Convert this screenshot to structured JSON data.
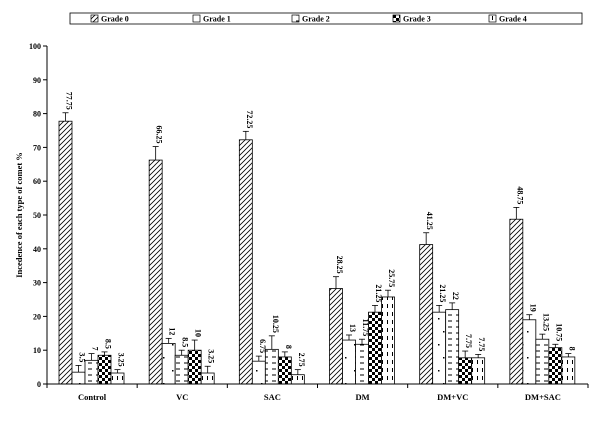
{
  "chart_data": {
    "type": "bar",
    "ylabel": "Incedence of each type of comet %",
    "xlabel": "",
    "ylim": [
      0,
      100
    ],
    "yticks": [
      0,
      10,
      20,
      30,
      40,
      50,
      60,
      70,
      80,
      90,
      100
    ],
    "grid": false,
    "legend_position": "top",
    "categories": [
      "Control",
      "VC",
      "SAC",
      "DM",
      "DM+VC",
      "DM+SAC"
    ],
    "series": [
      {
        "name": "Grade 0",
        "pattern": "diagonal",
        "values": [
          77.75,
          66.25,
          72.25,
          28.25,
          41.25,
          48.75
        ],
        "errors": [
          2.5,
          4.0,
          2.5,
          3.5,
          3.5,
          3.5
        ],
        "labels": [
          "77.75",
          "66.25",
          "72.25",
          "28.25",
          "41.25",
          "48.75"
        ]
      },
      {
        "name": "Grade 1",
        "pattern": "sparse-dots",
        "values": [
          3.5,
          12,
          6.75,
          13,
          21.25,
          19
        ],
        "errors": [
          2.0,
          1.5,
          1.5,
          1.5,
          2.0,
          1.5
        ],
        "labels": [
          "3.5",
          "12",
          "6.75",
          "13",
          "21.25",
          "19"
        ]
      },
      {
        "name": "Grade 2",
        "pattern": "horizontal-dashes",
        "values": [
          7,
          8.5,
          10.25,
          11.75,
          22,
          13.25
        ],
        "errors": [
          2.0,
          1.5,
          4.0,
          1.5,
          2.0,
          1.5
        ],
        "labels": [
          "7",
          "8.5",
          "10.25",
          "11.75",
          "22",
          "13.25"
        ]
      },
      {
        "name": "Grade 3",
        "pattern": "checker",
        "values": [
          8.5,
          10,
          8,
          21.25,
          7.75,
          10.75
        ],
        "errors": [
          1.0,
          3.0,
          1.5,
          2.0,
          2.0,
          1.0
        ],
        "labels": [
          "8.5",
          "10",
          "8",
          "21.25",
          "7.75",
          "10.75"
        ]
      },
      {
        "name": "Grade 4",
        "pattern": "vertical-dashes",
        "values": [
          3.25,
          3.25,
          2.75,
          25.75,
          7.75,
          8
        ],
        "errors": [
          1.0,
          2.0,
          1.5,
          2.0,
          1.0,
          1.0
        ],
        "labels": [
          "3.25",
          "3.25",
          "2.75",
          "25.75",
          "7.75",
          "8"
        ]
      }
    ]
  }
}
